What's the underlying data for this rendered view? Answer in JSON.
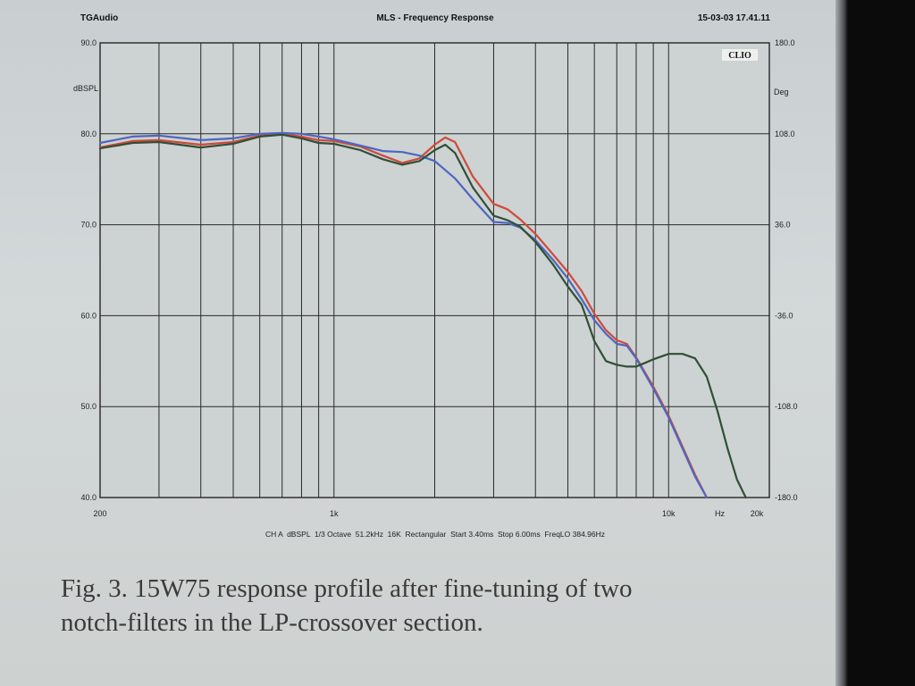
{
  "header": {
    "left": "TGAudio",
    "title": "MLS - Frequency Response",
    "timestamp": "15-03-03 17.41.11",
    "logo": "CLIO"
  },
  "footer_settings": "CH A  dBSPL  1/3 Octave  51.2kHz  16K  Rectangular  Start 3.40ms  Stop 6.00ms  FreqLO 384.96Hz",
  "caption": {
    "line1": "Fig. 3. 15W75 response profile after fine-tuning of two",
    "line2": "notch-filters in the LP-crossover section."
  },
  "chart_data": {
    "type": "line",
    "xscale": "log",
    "xlim": [
      200,
      20000
    ],
    "ylim": [
      40,
      90
    ],
    "y2lim": [
      -180,
      180
    ],
    "ylabel": "dBSPL",
    "y2label": "Deg",
    "xunit": "Hz",
    "grid": true,
    "y_ticks": [
      {
        "value": 90,
        "label": "90.0"
      },
      {
        "value": 80,
        "label": "80.0"
      },
      {
        "value": 70,
        "label": "70.0"
      },
      {
        "value": 60,
        "label": "60.0"
      },
      {
        "value": 50,
        "label": "50.0"
      },
      {
        "value": 40,
        "label": "40.0"
      }
    ],
    "y2_ticks": [
      {
        "value": 180,
        "label": "180.0"
      },
      {
        "value": 108,
        "label": "108.0"
      },
      {
        "value": 36,
        "label": "36.0"
      },
      {
        "value": -36,
        "label": "-36.0"
      },
      {
        "value": -108,
        "label": "-108.0"
      },
      {
        "value": -180,
        "label": "-180.0"
      }
    ],
    "x_tick_labels": [
      {
        "value": 200,
        "label": "200"
      },
      {
        "value": 1000,
        "label": "1k"
      },
      {
        "value": 10000,
        "label": "10k"
      },
      {
        "value": 20000,
        "label": "20k"
      }
    ],
    "x_gridlines": [
      200,
      300,
      400,
      500,
      600,
      700,
      800,
      900,
      1000,
      2000,
      3000,
      4000,
      5000,
      6000,
      7000,
      8000,
      9000,
      10000,
      20000
    ],
    "series": [
      {
        "color": "#cf4a3a",
        "points": [
          [
            200,
            78.5
          ],
          [
            250,
            79.2
          ],
          [
            300,
            79.3
          ],
          [
            400,
            78.8
          ],
          [
            500,
            79.1
          ],
          [
            600,
            79.8
          ],
          [
            700,
            80.0
          ],
          [
            800,
            79.7
          ],
          [
            900,
            79.3
          ],
          [
            1000,
            79.2
          ],
          [
            1200,
            78.6
          ],
          [
            1400,
            77.6
          ],
          [
            1600,
            76.8
          ],
          [
            1800,
            77.3
          ],
          [
            2000,
            78.8
          ],
          [
            2150,
            79.6
          ],
          [
            2300,
            79.1
          ],
          [
            2600,
            75.3
          ],
          [
            3000,
            72.3
          ],
          [
            3300,
            71.7
          ],
          [
            3600,
            70.6
          ],
          [
            4000,
            69.0
          ],
          [
            4500,
            66.8
          ],
          [
            5000,
            64.8
          ],
          [
            5500,
            62.7
          ],
          [
            6000,
            60.2
          ],
          [
            6500,
            58.4
          ],
          [
            7000,
            57.3
          ],
          [
            7500,
            56.9
          ],
          [
            8000,
            55.4
          ],
          [
            9000,
            52.2
          ],
          [
            10000,
            49.0
          ],
          [
            11000,
            45.6
          ],
          [
            12000,
            42.5
          ],
          [
            13000,
            40.0
          ]
        ]
      },
      {
        "color": "#4c66c2",
        "points": [
          [
            200,
            79.0
          ],
          [
            250,
            79.7
          ],
          [
            300,
            79.8
          ],
          [
            400,
            79.3
          ],
          [
            500,
            79.5
          ],
          [
            600,
            80.0
          ],
          [
            700,
            80.1
          ],
          [
            800,
            80.0
          ],
          [
            900,
            79.7
          ],
          [
            1000,
            79.4
          ],
          [
            1200,
            78.7
          ],
          [
            1400,
            78.1
          ],
          [
            1600,
            78.0
          ],
          [
            1800,
            77.6
          ],
          [
            2000,
            77.0
          ],
          [
            2300,
            75.1
          ],
          [
            2600,
            72.8
          ],
          [
            3000,
            70.3
          ],
          [
            3300,
            70.2
          ],
          [
            3600,
            69.7
          ],
          [
            4000,
            68.3
          ],
          [
            4500,
            66.2
          ],
          [
            5000,
            64.1
          ],
          [
            5500,
            61.8
          ],
          [
            6000,
            59.5
          ],
          [
            6500,
            58.0
          ],
          [
            7000,
            56.9
          ],
          [
            7500,
            56.7
          ],
          [
            8000,
            55.3
          ],
          [
            9000,
            52.0
          ],
          [
            10000,
            48.8
          ],
          [
            11000,
            45.4
          ],
          [
            12000,
            42.3
          ],
          [
            13000,
            40.0
          ]
        ]
      },
      {
        "color": "#2f4f36",
        "points": [
          [
            200,
            78.4
          ],
          [
            250,
            79.0
          ],
          [
            300,
            79.1
          ],
          [
            400,
            78.5
          ],
          [
            500,
            78.9
          ],
          [
            600,
            79.7
          ],
          [
            700,
            79.9
          ],
          [
            800,
            79.5
          ],
          [
            900,
            79.0
          ],
          [
            1000,
            78.9
          ],
          [
            1200,
            78.2
          ],
          [
            1400,
            77.2
          ],
          [
            1600,
            76.6
          ],
          [
            1800,
            77.0
          ],
          [
            2000,
            78.2
          ],
          [
            2150,
            78.8
          ],
          [
            2300,
            77.9
          ],
          [
            2600,
            74.1
          ],
          [
            3000,
            71.0
          ],
          [
            3300,
            70.5
          ],
          [
            3600,
            69.8
          ],
          [
            4000,
            68.1
          ],
          [
            4500,
            65.7
          ],
          [
            5000,
            63.2
          ],
          [
            5500,
            61.2
          ],
          [
            6000,
            57.2
          ],
          [
            6500,
            55.0
          ],
          [
            7000,
            54.6
          ],
          [
            7500,
            54.4
          ],
          [
            8000,
            54.4
          ],
          [
            8500,
            54.8
          ],
          [
            9000,
            55.2
          ],
          [
            10000,
            55.8
          ],
          [
            11000,
            55.8
          ],
          [
            12000,
            55.3
          ],
          [
            13000,
            53.3
          ],
          [
            14000,
            49.5
          ],
          [
            15000,
            45.4
          ],
          [
            16000,
            42.0
          ],
          [
            17000,
            40.0
          ]
        ]
      }
    ]
  }
}
